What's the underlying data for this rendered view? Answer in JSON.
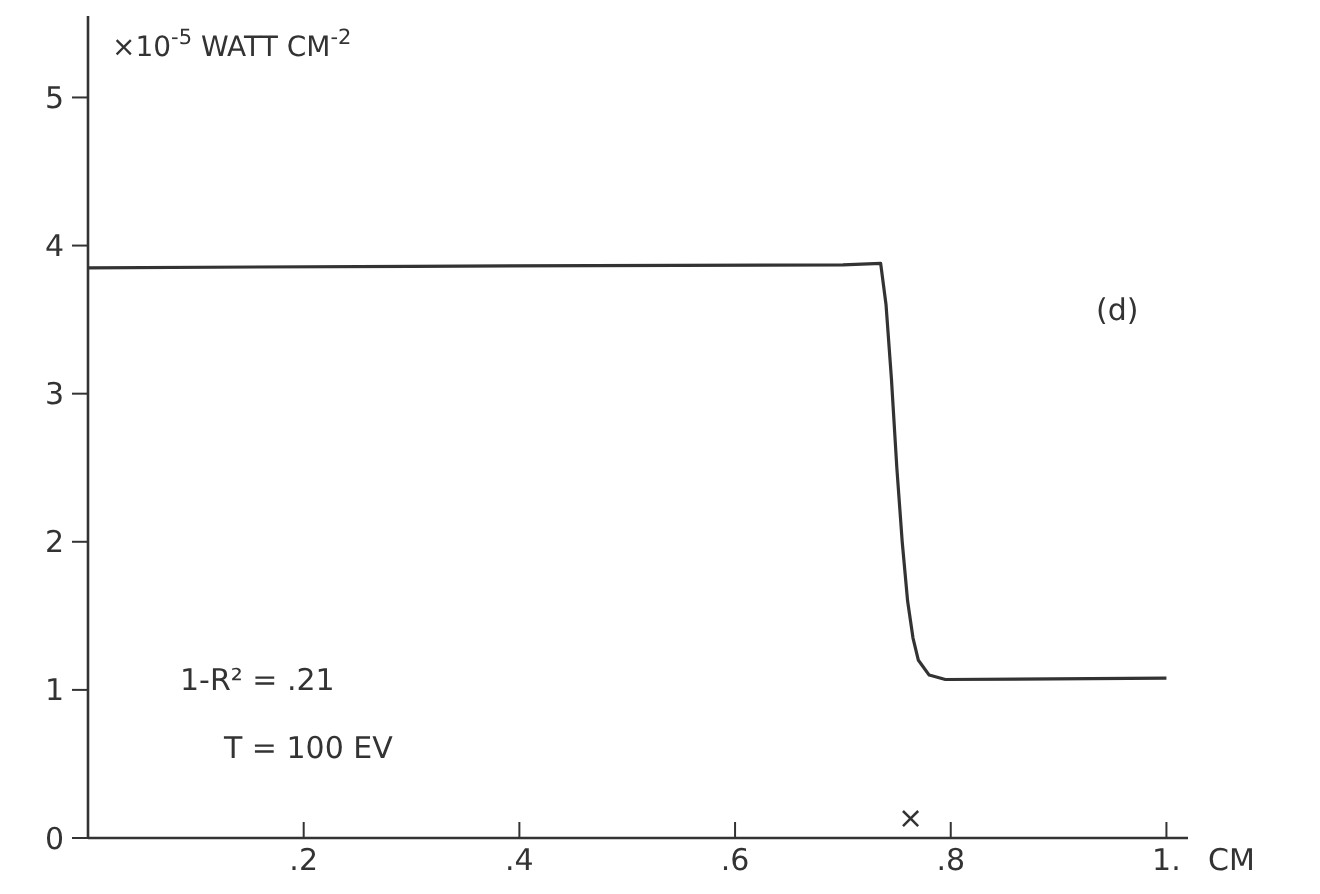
{
  "chart_data": {
    "type": "line",
    "xlabel": "CM",
    "ylabel": "×10$^{-5}$ WATT CM$^{-2}$",
    "x": [
      0,
      0.3,
      0.7,
      0.735,
      0.74,
      0.745,
      0.75,
      0.755,
      0.76,
      0.765,
      0.77,
      0.78,
      0.795,
      1.0
    ],
    "series": [
      {
        "color": "#333333",
        "values": [
          3.85,
          3.86,
          3.87,
          3.88,
          3.6,
          3.1,
          2.5,
          2.0,
          1.6,
          1.35,
          1.2,
          1.1,
          1.07,
          1.08
        ]
      }
    ],
    "xlim": [
      0,
      1.02
    ],
    "ylim": [
      0,
      5.55
    ],
    "xticks": [
      {
        "value": 0.2,
        "label": ".2"
      },
      {
        "value": 0.4,
        "label": ".4"
      },
      {
        "value": 0.6,
        "label": ".6"
      },
      {
        "value": 0.8,
        "label": ".8"
      },
      {
        "value": 1,
        "label": "1."
      }
    ],
    "yticks": [
      0,
      1,
      2,
      3,
      4,
      5
    ],
    "annotations": [
      "(d)",
      "1-R² = .21",
      "T = 100 EV",
      "×"
    ],
    "grid": false,
    "marker": "none",
    "line_style": "solid"
  }
}
